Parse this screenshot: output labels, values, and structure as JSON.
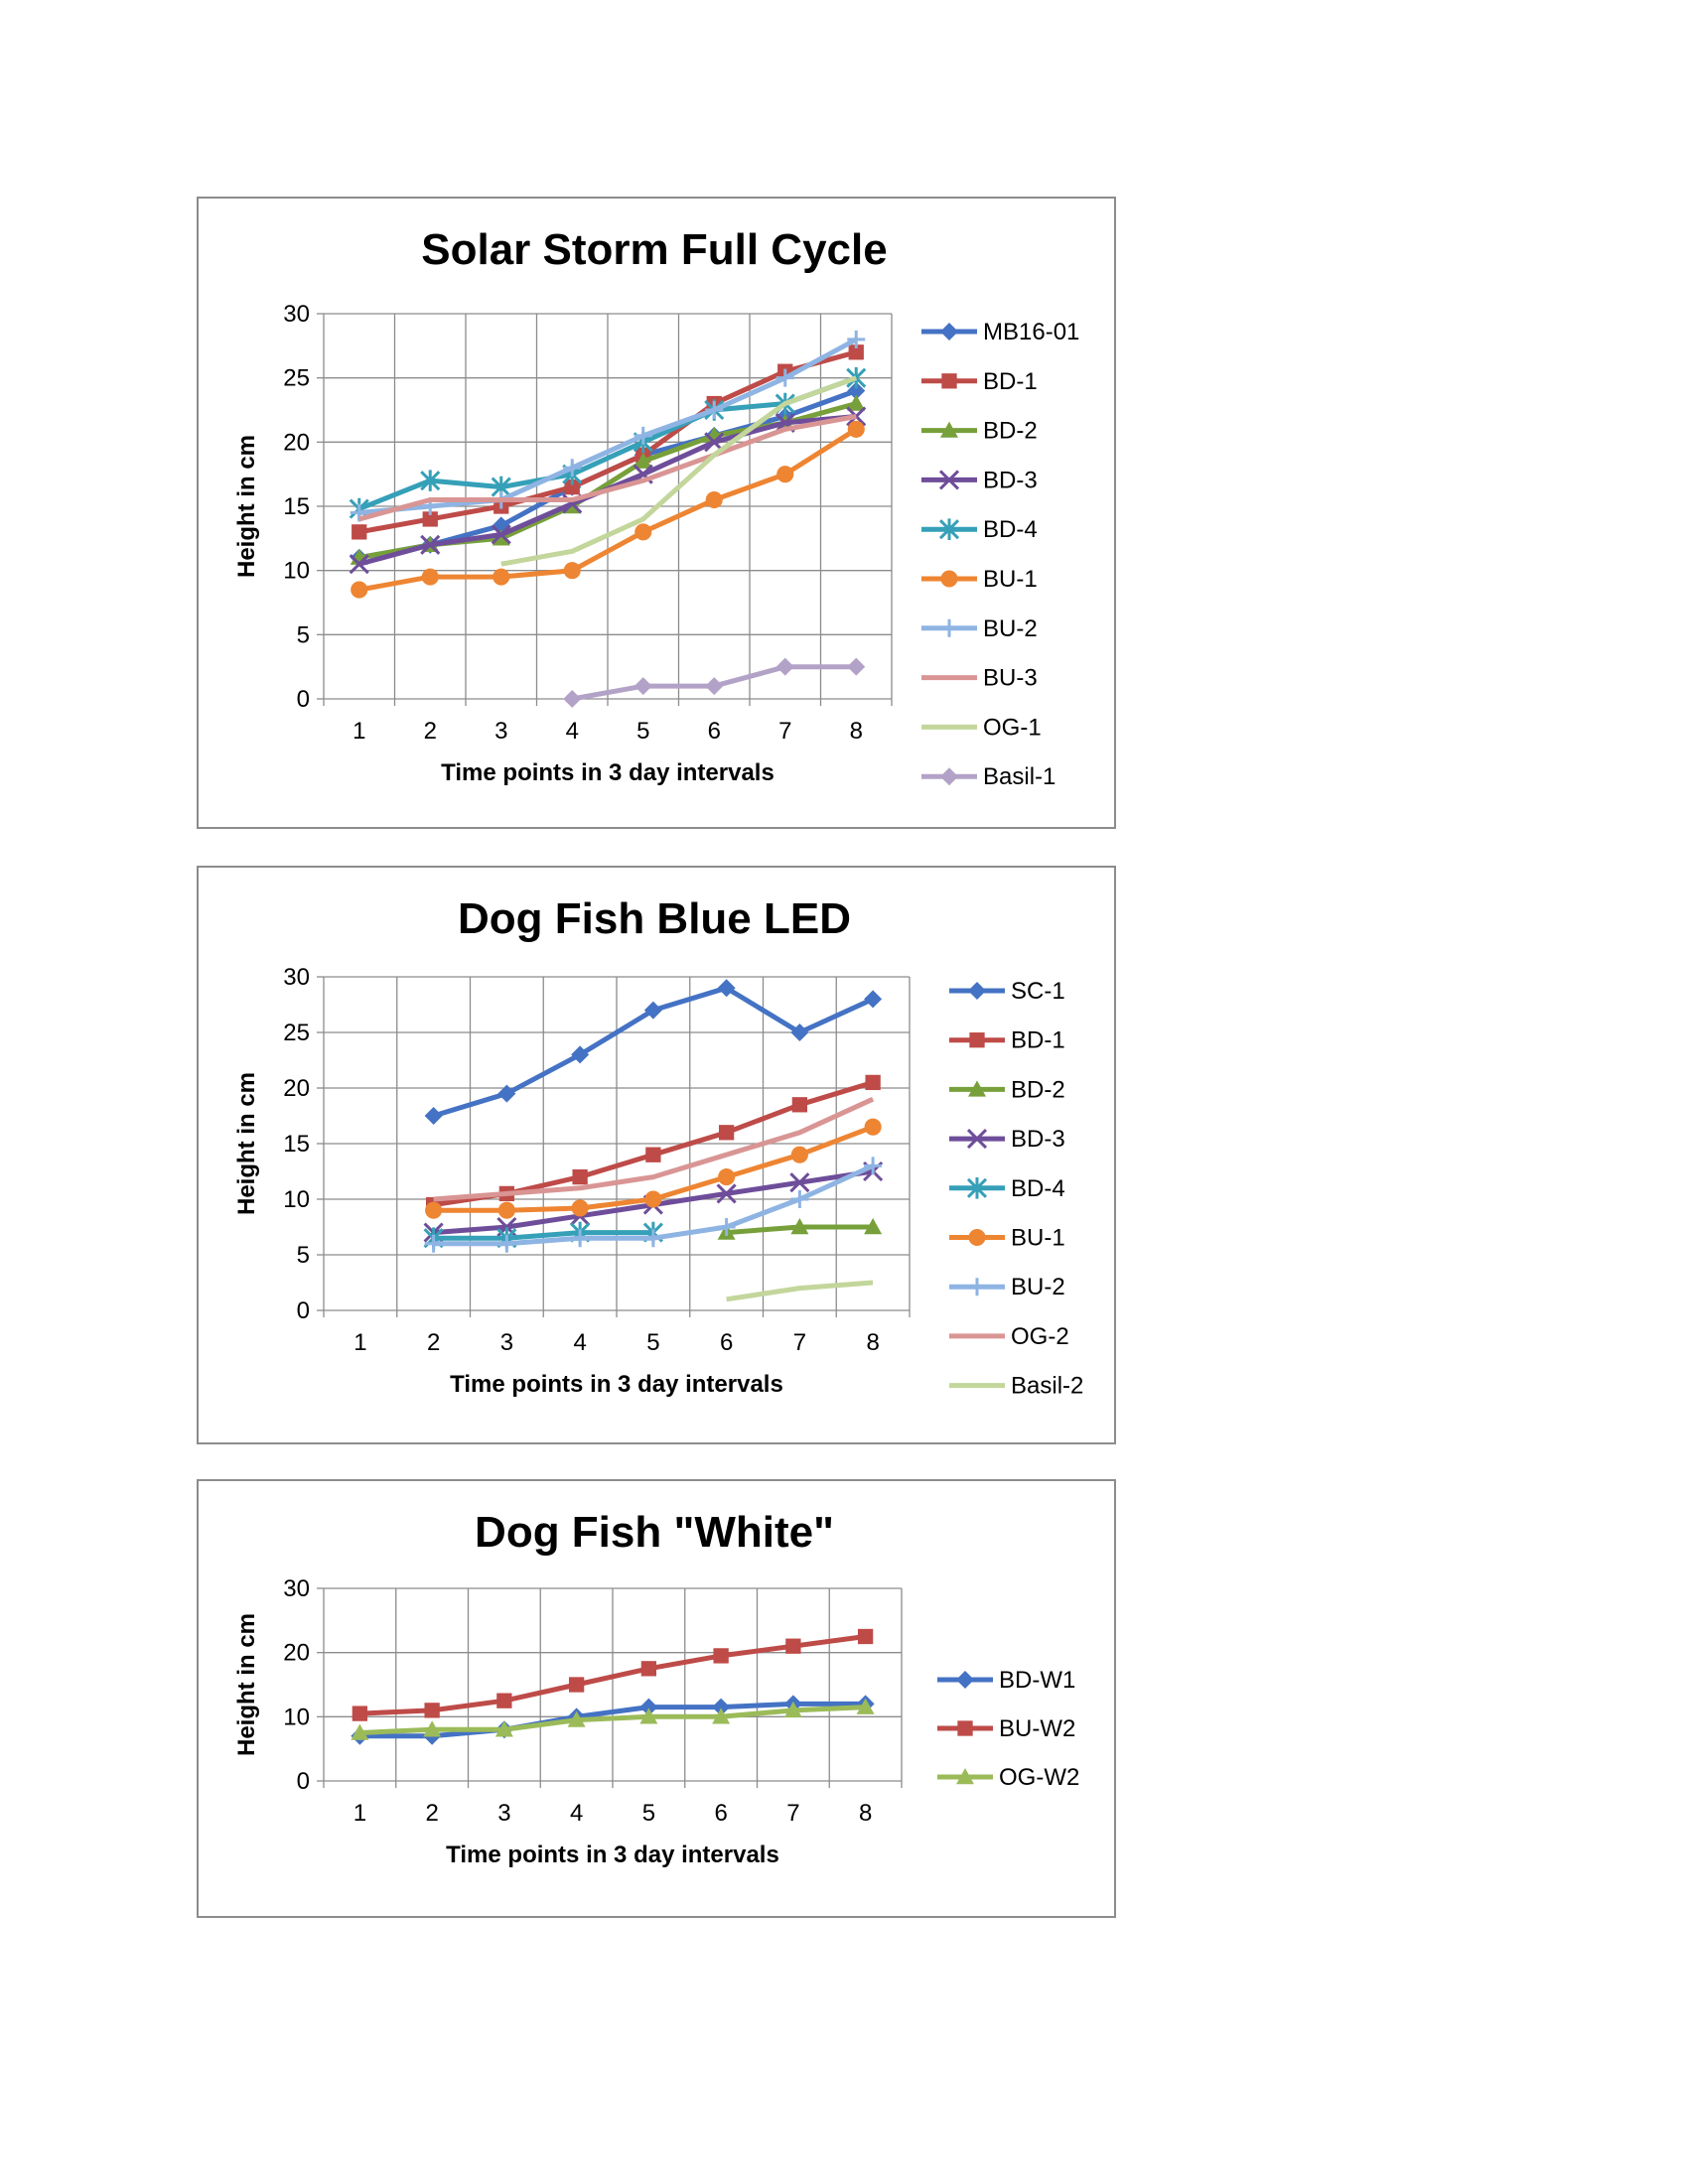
{
  "chart_data": [
    {
      "type": "line",
      "title": "Solar Storm Full Cycle",
      "xlabel": "Time points in 3 day intervals",
      "ylabel": "Height in cm",
      "x": [
        1,
        2,
        3,
        4,
        5,
        6,
        7,
        8
      ],
      "ylim": [
        0,
        30
      ],
      "yticks": [
        0,
        5,
        10,
        15,
        20,
        25,
        30
      ],
      "grid": true,
      "legend_position": "right",
      "series": [
        {
          "name": "MB16-01",
          "color": "#4472c4",
          "marker": "diamond",
          "values": [
            11,
            12,
            13.5,
            16.5,
            19,
            20.5,
            22,
            24
          ]
        },
        {
          "name": "BD-1",
          "color": "#be4b48",
          "marker": "square",
          "values": [
            13,
            14,
            15,
            16.5,
            19,
            23,
            25.5,
            27
          ]
        },
        {
          "name": "BD-2",
          "color": "#77a03a",
          "marker": "triangle",
          "values": [
            11,
            12,
            12.5,
            15,
            18.5,
            20.5,
            21.5,
            23
          ]
        },
        {
          "name": "BD-3",
          "color": "#6e4d9a",
          "marker": "x",
          "values": [
            10.5,
            12,
            12.8,
            15.2,
            17.5,
            20,
            21.5,
            22
          ]
        },
        {
          "name": "BD-4",
          "color": "#35a0b8",
          "marker": "asterisk",
          "values": [
            14.8,
            17,
            16.5,
            17.5,
            20,
            22.5,
            23,
            25
          ]
        },
        {
          "name": "BU-1",
          "color": "#ee8532",
          "marker": "circle",
          "values": [
            8.5,
            9.5,
            9.5,
            10,
            13,
            15.5,
            17.5,
            21
          ]
        },
        {
          "name": "BU-2",
          "color": "#8eb4e3",
          "marker": "plus",
          "values": [
            14.5,
            15,
            15.5,
            18,
            20.5,
            22.5,
            25,
            28
          ]
        },
        {
          "name": "BU-3",
          "color": "#d99594",
          "marker": "none",
          "values": [
            14,
            15.5,
            15.5,
            15.5,
            17,
            19,
            21,
            22
          ]
        },
        {
          "name": "OG-1",
          "color": "#c3d69b",
          "marker": "none",
          "values": [
            null,
            null,
            10.5,
            11.5,
            14,
            19,
            23,
            25
          ]
        },
        {
          "name": "Basil-1",
          "color": "#b3a2c7",
          "marker": "diamond",
          "values": [
            null,
            null,
            null,
            0,
            1,
            1,
            2.5,
            2.5
          ]
        }
      ]
    },
    {
      "type": "line",
      "title": "Dog Fish Blue LED",
      "xlabel": "Time points in 3 day intervals",
      "ylabel": "Height in cm",
      "x": [
        1,
        2,
        3,
        4,
        5,
        6,
        7,
        8
      ],
      "ylim": [
        0,
        30
      ],
      "yticks": [
        0,
        5,
        10,
        15,
        20,
        25,
        30
      ],
      "grid": true,
      "legend_position": "right",
      "series": [
        {
          "name": "SC-1",
          "color": "#4472c4",
          "marker": "diamond",
          "values": [
            null,
            17.5,
            19.5,
            23,
            27,
            29,
            25,
            28
          ]
        },
        {
          "name": "BD-1",
          "color": "#be4b48",
          "marker": "square",
          "values": [
            null,
            9.5,
            10.5,
            12,
            14,
            16,
            18.5,
            20.5
          ]
        },
        {
          "name": "BD-2",
          "color": "#77a03a",
          "marker": "triangle",
          "values": [
            null,
            null,
            null,
            null,
            null,
            7,
            7.5,
            7.5
          ]
        },
        {
          "name": "BD-3",
          "color": "#6e4d9a",
          "marker": "x",
          "values": [
            null,
            7,
            7.5,
            8.5,
            9.5,
            10.5,
            11.5,
            12.5
          ]
        },
        {
          "name": "BD-4",
          "color": "#35a0b8",
          "marker": "asterisk",
          "values": [
            null,
            6.5,
            6.5,
            7,
            7,
            null,
            null,
            null
          ]
        },
        {
          "name": "BU-1",
          "color": "#ee8532",
          "marker": "circle",
          "values": [
            null,
            9,
            9,
            9.2,
            10,
            12,
            14,
            16.5
          ]
        },
        {
          "name": "BU-2",
          "color": "#8eb4e3",
          "marker": "plus",
          "values": [
            null,
            6,
            6,
            6.5,
            6.5,
            7.5,
            10,
            13
          ]
        },
        {
          "name": "OG-2",
          "color": "#d99594",
          "marker": "none",
          "values": [
            null,
            10,
            10.5,
            11,
            12,
            14,
            16,
            19
          ]
        },
        {
          "name": "Basil-2",
          "color": "#c3d69b",
          "marker": "none",
          "values": [
            null,
            null,
            null,
            null,
            null,
            1,
            2,
            2.5
          ]
        }
      ]
    },
    {
      "type": "line",
      "title": "Dog Fish \"White\"",
      "xlabel": "Time points in 3 day intervals",
      "ylabel": "Height in cm",
      "x": [
        1,
        2,
        3,
        4,
        5,
        6,
        7,
        8
      ],
      "ylim": [
        0,
        30
      ],
      "yticks": [
        0,
        10,
        20,
        30
      ],
      "grid": true,
      "legend_position": "right",
      "series": [
        {
          "name": "BD-W1",
          "color": "#4472c4",
          "marker": "diamond",
          "values": [
            7,
            7,
            8,
            10,
            11.5,
            11.5,
            12,
            12
          ]
        },
        {
          "name": "BU-W2",
          "color": "#be4b48",
          "marker": "square",
          "values": [
            10.5,
            11,
            12.5,
            15,
            17.5,
            19.5,
            21,
            22.5
          ]
        },
        {
          "name": "OG-W2",
          "color": "#9bbb59",
          "marker": "triangle",
          "values": [
            7.5,
            8,
            8,
            9.5,
            10,
            10,
            11,
            11.5
          ]
        }
      ]
    }
  ]
}
